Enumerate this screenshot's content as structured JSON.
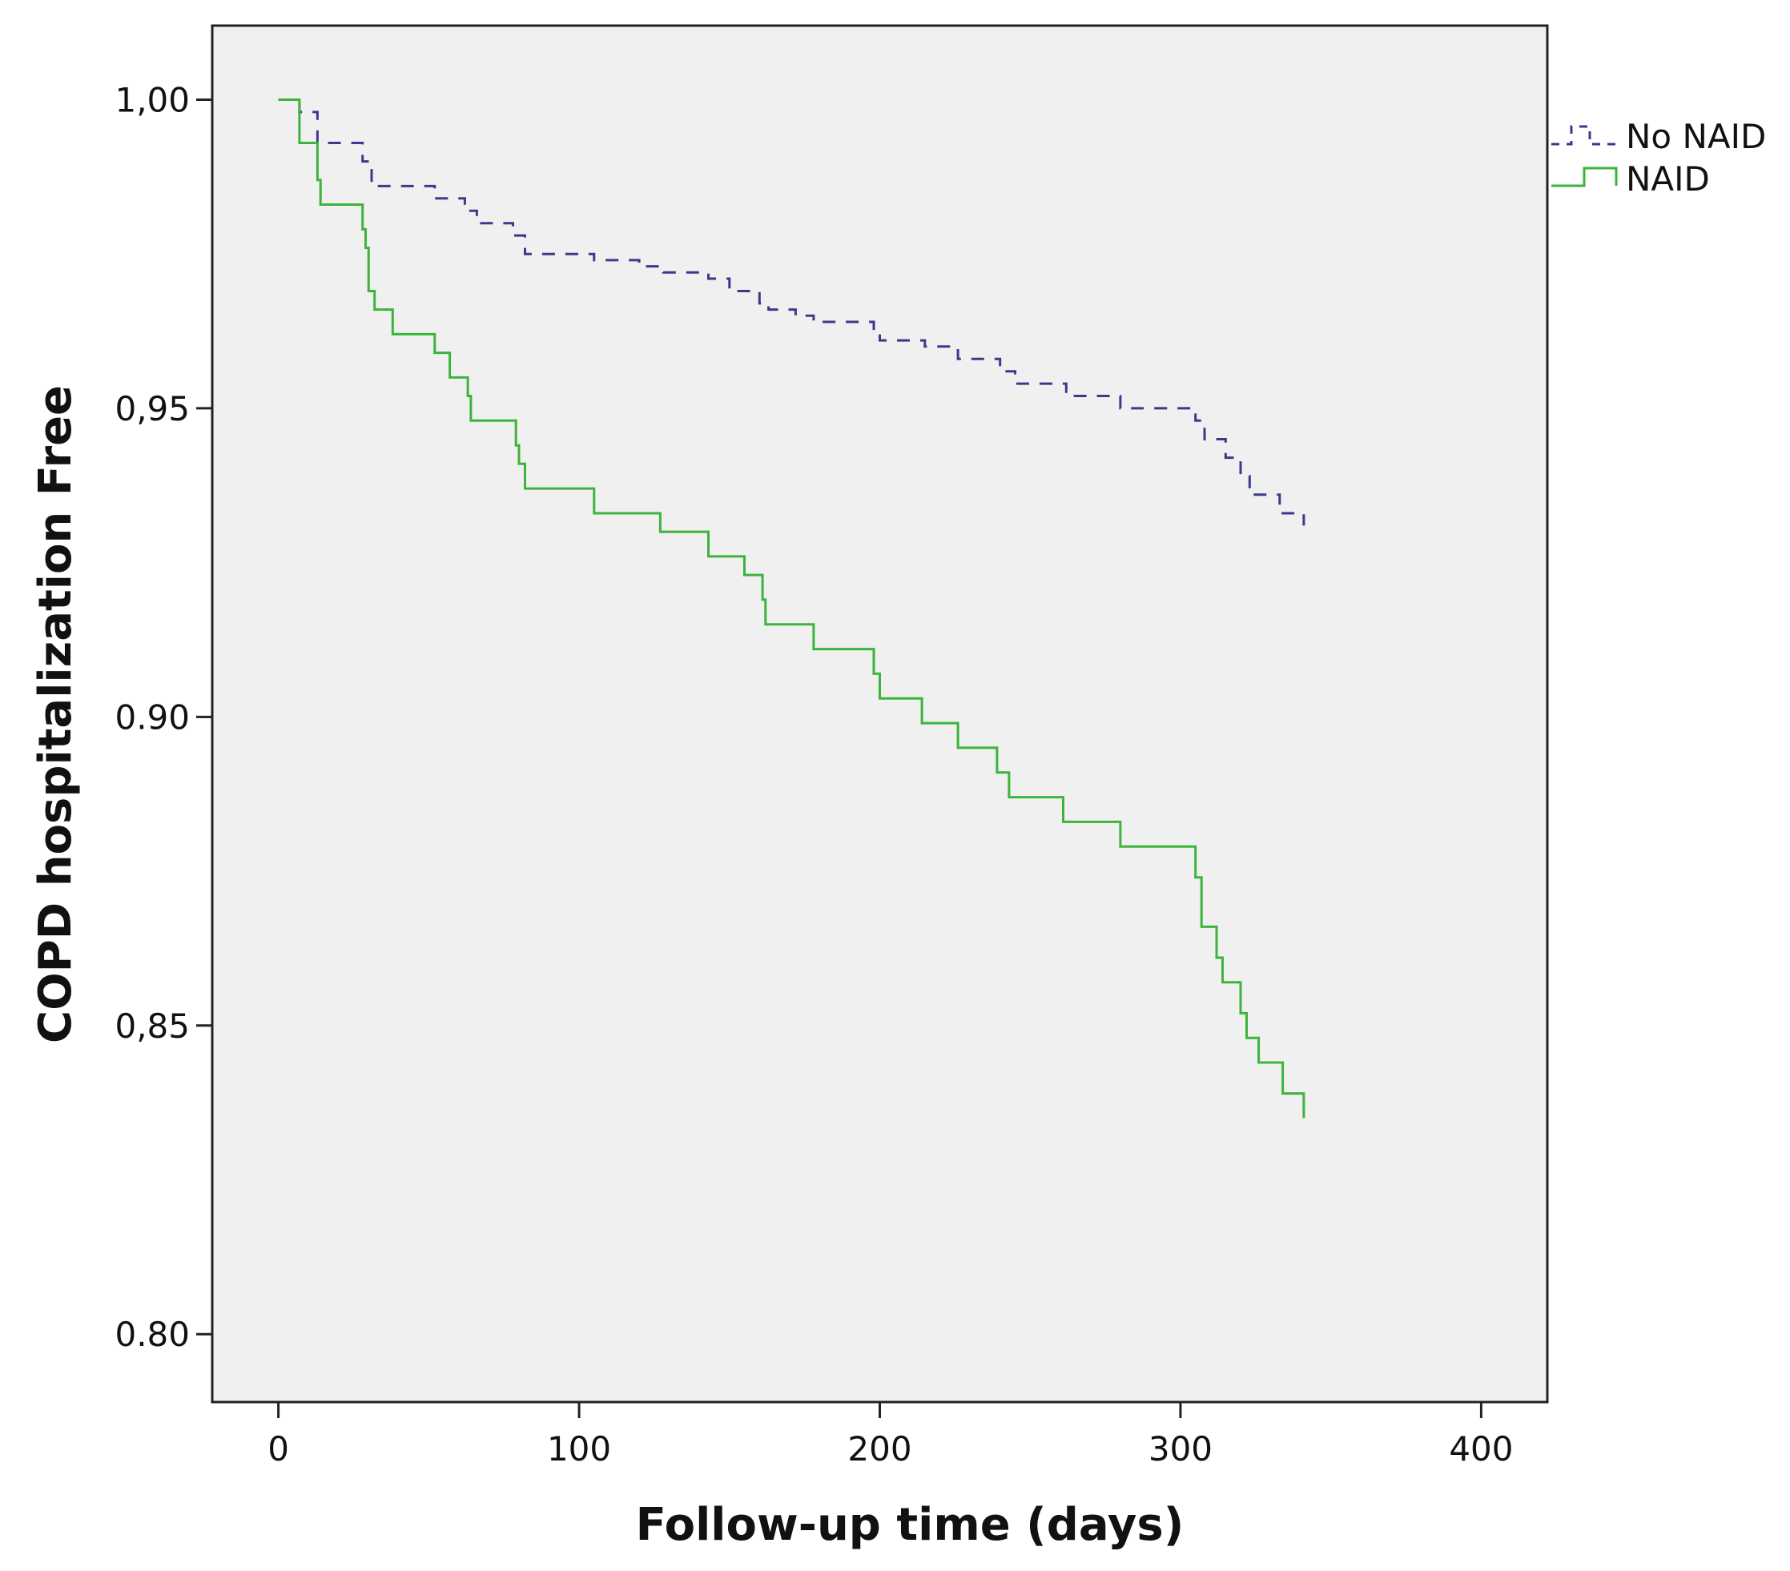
{
  "chart_data": {
    "type": "line",
    "subtype": "kaplan-meier step curve",
    "title": "",
    "xlabel": "Follow-up time (days)",
    "ylabel": "COPD hospitalization Free",
    "xlim": [
      -22,
      422
    ],
    "ylim": [
      0.789,
      1.012
    ],
    "x_ticks": [
      {
        "value": 0,
        "label": "0"
      },
      {
        "value": 100,
        "label": "100"
      },
      {
        "value": 200,
        "label": "200"
      },
      {
        "value": 300,
        "label": "300"
      },
      {
        "value": 400,
        "label": "400"
      }
    ],
    "y_ticks": [
      {
        "value": 1.0,
        "label": "1,00"
      },
      {
        "value": 0.95,
        "label": "0,95"
      },
      {
        "value": 0.9,
        "label": "0.90"
      },
      {
        "value": 0.85,
        "label": "0,85"
      },
      {
        "value": 0.8,
        "label": "0.80"
      }
    ],
    "grid": false,
    "background": "#f0f0f0",
    "legend": {
      "placement": "right-top-outside"
    },
    "series": [
      {
        "name": "No NAID",
        "color": "#3a3a8c",
        "style": "dashed",
        "points": [
          [
            0,
            1.0
          ],
          [
            7,
            1.0
          ],
          [
            7,
            0.998
          ],
          [
            13,
            0.998
          ],
          [
            13,
            0.993
          ],
          [
            28,
            0.993
          ],
          [
            28,
            0.99
          ],
          [
            31,
            0.99
          ],
          [
            31,
            0.986
          ],
          [
            52,
            0.986
          ],
          [
            52,
            0.984
          ],
          [
            62,
            0.984
          ],
          [
            62,
            0.982
          ],
          [
            66,
            0.982
          ],
          [
            66,
            0.98
          ],
          [
            78,
            0.98
          ],
          [
            78,
            0.978
          ],
          [
            82,
            0.978
          ],
          [
            82,
            0.975
          ],
          [
            105,
            0.975
          ],
          [
            105,
            0.974
          ],
          [
            120,
            0.974
          ],
          [
            120,
            0.973
          ],
          [
            128,
            0.973
          ],
          [
            128,
            0.972
          ],
          [
            143,
            0.972
          ],
          [
            143,
            0.971
          ],
          [
            150,
            0.971
          ],
          [
            150,
            0.969
          ],
          [
            160,
            0.969
          ],
          [
            160,
            0.967
          ],
          [
            163,
            0.967
          ],
          [
            163,
            0.966
          ],
          [
            172,
            0.966
          ],
          [
            172,
            0.965
          ],
          [
            178,
            0.965
          ],
          [
            178,
            0.964
          ],
          [
            198,
            0.964
          ],
          [
            198,
            0.962
          ],
          [
            200,
            0.962
          ],
          [
            200,
            0.961
          ],
          [
            215,
            0.961
          ],
          [
            215,
            0.96
          ],
          [
            226,
            0.96
          ],
          [
            226,
            0.958
          ],
          [
            240,
            0.958
          ],
          [
            240,
            0.956
          ],
          [
            245,
            0.956
          ],
          [
            245,
            0.954
          ],
          [
            262,
            0.954
          ],
          [
            262,
            0.952
          ],
          [
            280,
            0.952
          ],
          [
            280,
            0.95
          ],
          [
            305,
            0.95
          ],
          [
            305,
            0.948
          ],
          [
            308,
            0.948
          ],
          [
            308,
            0.945
          ],
          [
            315,
            0.945
          ],
          [
            315,
            0.942
          ],
          [
            320,
            0.942
          ],
          [
            320,
            0.939
          ],
          [
            323,
            0.939
          ],
          [
            323,
            0.936
          ],
          [
            333,
            0.936
          ],
          [
            333,
            0.933
          ],
          [
            341,
            0.933
          ],
          [
            341,
            0.931
          ]
        ]
      },
      {
        "name": "NAID",
        "color": "#3cb43c",
        "style": "solid",
        "points": [
          [
            0,
            1.0
          ],
          [
            7,
            1.0
          ],
          [
            7,
            0.993
          ],
          [
            13,
            0.993
          ],
          [
            13,
            0.987
          ],
          [
            14,
            0.987
          ],
          [
            14,
            0.983
          ],
          [
            28,
            0.983
          ],
          [
            28,
            0.979
          ],
          [
            29,
            0.979
          ],
          [
            29,
            0.976
          ],
          [
            30,
            0.976
          ],
          [
            30,
            0.969
          ],
          [
            32,
            0.969
          ],
          [
            32,
            0.966
          ],
          [
            38,
            0.966
          ],
          [
            38,
            0.962
          ],
          [
            52,
            0.962
          ],
          [
            52,
            0.959
          ],
          [
            57,
            0.959
          ],
          [
            57,
            0.955
          ],
          [
            63,
            0.955
          ],
          [
            63,
            0.952
          ],
          [
            64,
            0.952
          ],
          [
            64,
            0.948
          ],
          [
            79,
            0.948
          ],
          [
            79,
            0.944
          ],
          [
            80,
            0.944
          ],
          [
            80,
            0.941
          ],
          [
            82,
            0.941
          ],
          [
            82,
            0.937
          ],
          [
            105,
            0.937
          ],
          [
            105,
            0.933
          ],
          [
            127,
            0.933
          ],
          [
            127,
            0.93
          ],
          [
            143,
            0.93
          ],
          [
            143,
            0.926
          ],
          [
            155,
            0.926
          ],
          [
            155,
            0.923
          ],
          [
            161,
            0.923
          ],
          [
            161,
            0.919
          ],
          [
            162,
            0.919
          ],
          [
            162,
            0.915
          ],
          [
            178,
            0.915
          ],
          [
            178,
            0.911
          ],
          [
            198,
            0.911
          ],
          [
            198,
            0.907
          ],
          [
            200,
            0.907
          ],
          [
            200,
            0.903
          ],
          [
            214,
            0.903
          ],
          [
            214,
            0.899
          ],
          [
            226,
            0.899
          ],
          [
            226,
            0.895
          ],
          [
            239,
            0.895
          ],
          [
            239,
            0.891
          ],
          [
            243,
            0.891
          ],
          [
            243,
            0.887
          ],
          [
            261,
            0.887
          ],
          [
            261,
            0.883
          ],
          [
            280,
            0.883
          ],
          [
            280,
            0.879
          ],
          [
            305,
            0.879
          ],
          [
            305,
            0.874
          ],
          [
            307,
            0.874
          ],
          [
            307,
            0.866
          ],
          [
            312,
            0.866
          ],
          [
            312,
            0.861
          ],
          [
            314,
            0.861
          ],
          [
            314,
            0.857
          ],
          [
            320,
            0.857
          ],
          [
            320,
            0.852
          ],
          [
            322,
            0.852
          ],
          [
            322,
            0.848
          ],
          [
            326,
            0.848
          ],
          [
            326,
            0.844
          ],
          [
            334,
            0.844
          ],
          [
            334,
            0.839
          ],
          [
            341,
            0.839
          ],
          [
            341,
            0.835
          ]
        ]
      }
    ]
  }
}
